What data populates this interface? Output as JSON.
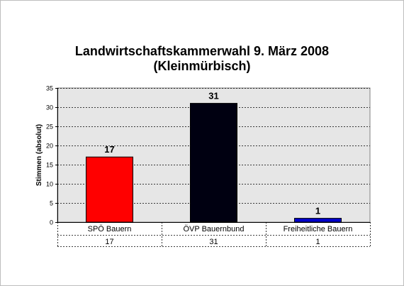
{
  "title_line1": "Landwirtschaftskammerwahl 9. März 2008",
  "title_line2": "(Kleinmürbisch)",
  "chart_data": {
    "type": "bar",
    "title": "Landwirtschaftskammerwahl 9. März 2008 (Kleinmürbisch)",
    "ylabel": "Stimmen (absolut)",
    "xlabel": "",
    "categories": [
      "SPÖ Bauern",
      "ÖVP Bauernbund",
      "Freiheitliche Bauern"
    ],
    "values": [
      17,
      31,
      1
    ],
    "data_labels": [
      "17",
      "31",
      "1"
    ],
    "table_row": [
      "17",
      "31",
      "1"
    ],
    "colors": [
      "#ff0000",
      "#000011",
      "#0000cc"
    ],
    "ylim": [
      0,
      35
    ],
    "yticks": [
      0,
      5,
      10,
      15,
      20,
      25,
      30,
      35
    ],
    "grid": true,
    "plot_background": "#e6e6e6"
  }
}
